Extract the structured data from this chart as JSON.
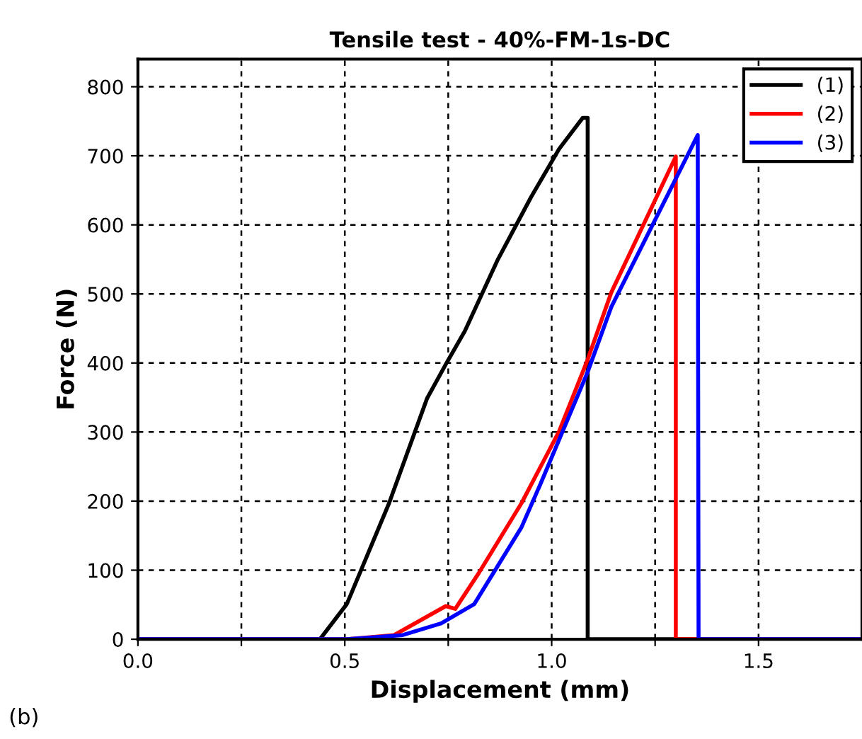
{
  "chart_data": {
    "type": "line",
    "title": "Tensile test - 40%-FM-1s-DC",
    "xlabel": "Displacement (mm)",
    "ylabel": "Force (N)",
    "annotations": [
      "(b)"
    ],
    "xlim": [
      0,
      1.75
    ],
    "ylim": [
      0,
      840
    ],
    "xticks": [
      {
        "value": 0,
        "label": "0.0"
      },
      {
        "value": 0.25,
        "label": null
      },
      {
        "value": 0.5,
        "label": "0.5"
      },
      {
        "value": 0.75,
        "label": null
      },
      {
        "value": 1.0,
        "label": "1.0"
      },
      {
        "value": 1.25,
        "label": null
      },
      {
        "value": 1.5,
        "label": "1.5"
      }
    ],
    "yticks": [
      0,
      100,
      200,
      300,
      400,
      500,
      600,
      700,
      800
    ],
    "grid": true,
    "legend": "top right",
    "line_style": "solid",
    "marker": "none",
    "series": [
      {
        "name": "(1)",
        "color": "#000000",
        "x": [
          0,
          0.44,
          0.505,
          0.607,
          0.699,
          0.744,
          0.79,
          0.87,
          0.95,
          1.018,
          1.075,
          1.087,
          1.087,
          1.75
        ],
        "values": [
          0,
          0,
          51,
          197,
          349,
          398,
          446,
          550,
          640,
          710,
          755,
          755,
          0,
          0
        ]
      },
      {
        "name": "(2)",
        "color": "#ff0000",
        "x": [
          0,
          0.505,
          0.619,
          0.744,
          0.767,
          0.824,
          0.927,
          1.018,
          1.087,
          1.144,
          1.3,
          1.3,
          1.75
        ],
        "values": [
          0,
          0,
          6,
          48,
          44,
          96,
          197,
          301,
          405,
          502,
          699,
          0,
          0
        ]
      },
      {
        "name": "(3)",
        "color": "#0000ff",
        "x": [
          0,
          0.505,
          0.64,
          0.733,
          0.813,
          0.927,
          0.973,
          1.087,
          1.144,
          1.353,
          1.355,
          1.75
        ],
        "values": [
          0,
          0,
          6,
          23,
          51,
          162,
          225,
          387,
          481,
          730,
          0,
          0
        ]
      }
    ]
  }
}
